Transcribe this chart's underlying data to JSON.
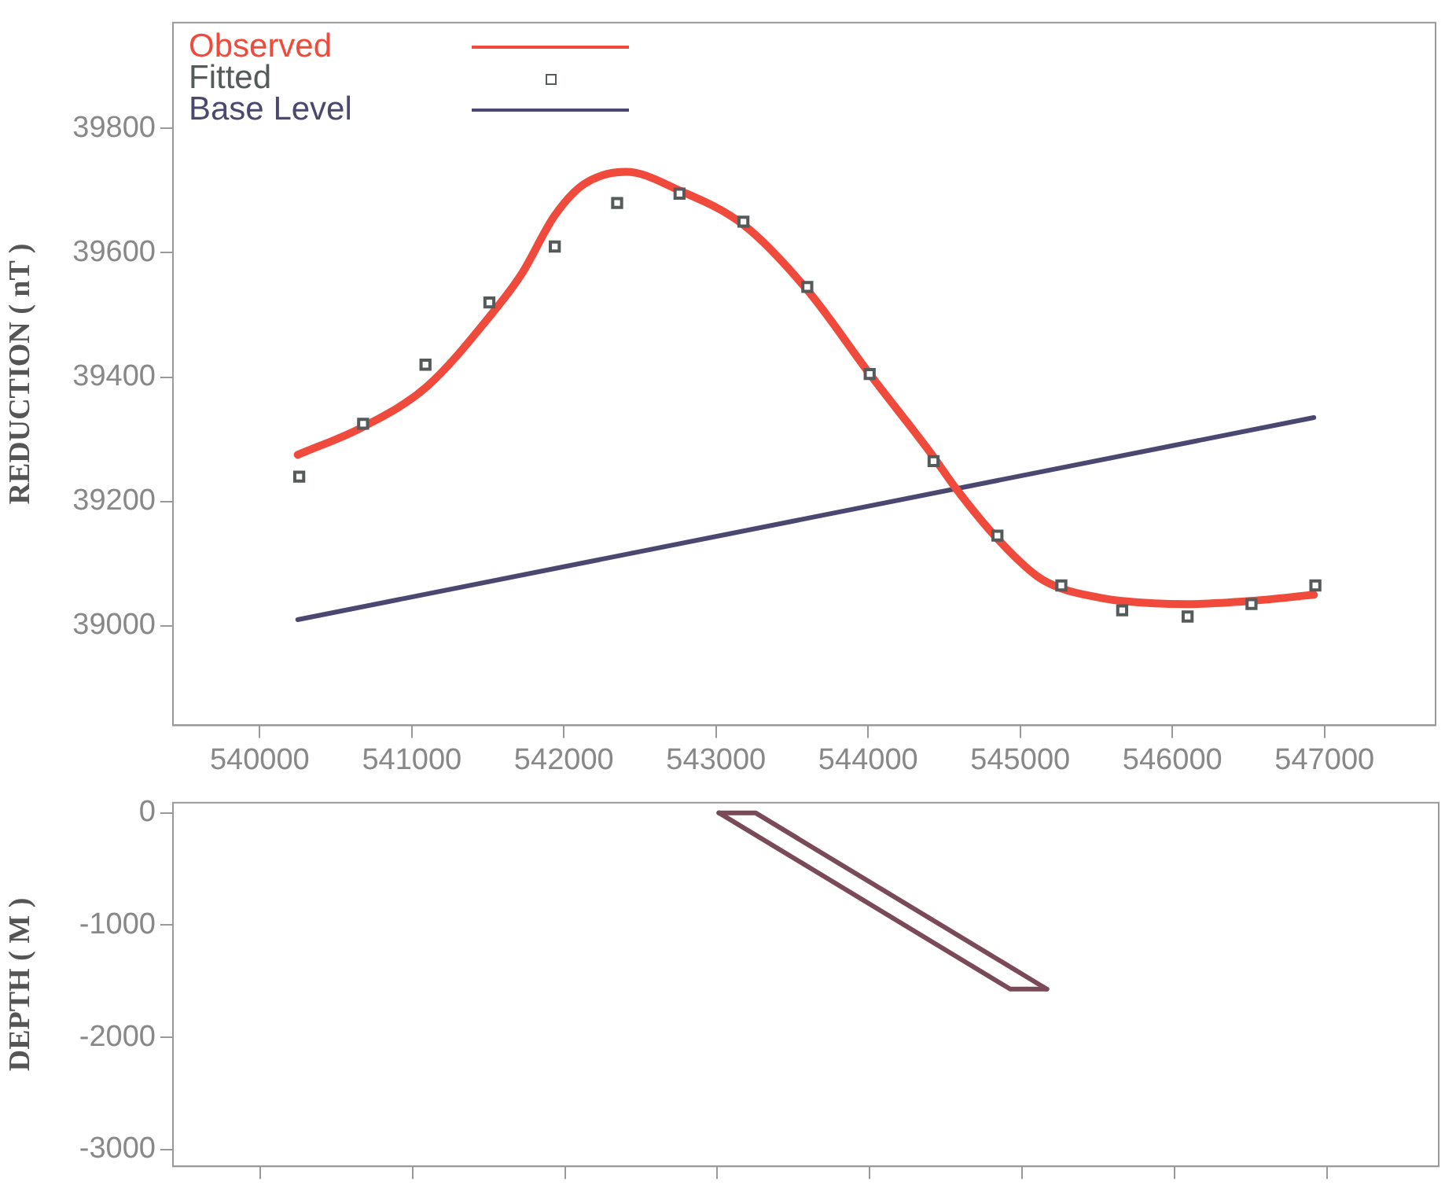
{
  "chart_data": [
    {
      "type": "line",
      "ylabel": "REDUCTION ( nT )",
      "xlim": [
        539430,
        547730
      ],
      "ylim": [
        38840,
        39970
      ],
      "xticks": [
        540000,
        541000,
        542000,
        543000,
        544000,
        545000,
        546000,
        547000
      ],
      "yticks": [
        39000,
        39200,
        39400,
        39600,
        39800
      ],
      "grid": false,
      "legend": "top left",
      "series": [
        {
          "name": "Observed",
          "type": "line",
          "color": "#f04a3c",
          "marker": "none",
          "line_style": "solid",
          "x": [
            540250,
            540680,
            541100,
            541520,
            541720,
            541940,
            542130,
            542410,
            542760,
            543180,
            543600,
            544010,
            544420,
            544580,
            544850,
            545110,
            545270,
            545530,
            545670,
            546090,
            546510,
            546930
          ],
          "values": [
            39275,
            39320,
            39385,
            39500,
            39565,
            39660,
            39710,
            39730,
            39700,
            39645,
            39540,
            39405,
            39275,
            39220,
            39140,
            39080,
            39060,
            39045,
            39040,
            39035,
            39040,
            39050
          ]
        },
        {
          "name": "Fitted",
          "type": "scatter",
          "color": "#555a5a",
          "marker": "square",
          "x": [
            540260,
            540680,
            541090,
            541510,
            541940,
            542350,
            542760,
            543180,
            543600,
            544010,
            544430,
            544850,
            545270,
            545670,
            546100,
            546520,
            546940
          ],
          "values": [
            39240,
            39325,
            39420,
            39520,
            39610,
            39680,
            39695,
            39650,
            39545,
            39405,
            39265,
            39145,
            39065,
            39025,
            39015,
            39035,
            39065
          ]
        },
        {
          "name": "Base Level",
          "type": "line",
          "color": "#4a4870",
          "marker": "none",
          "line_style": "solid",
          "x": [
            540250,
            546930
          ],
          "values": [
            39010,
            39335
          ]
        }
      ]
    },
    {
      "type": "line",
      "ylabel": "DEPTH ( M )",
      "xlim": [
        539430,
        547730
      ],
      "ylim": [
        -3150,
        90
      ],
      "xticks": [
        540000,
        541000,
        542000,
        543000,
        544000,
        545000,
        546000,
        547000
      ],
      "yticks": [
        -3000,
        -2000,
        -1000,
        0
      ],
      "grid": false,
      "legend": false,
      "tick_labels": "y",
      "series": [
        {
          "type": "line",
          "color": "#7a4a58",
          "marker": "none",
          "line_style": "solid",
          "x": [
            543010,
            543250,
            545160
          ],
          "values": [
            0,
            0,
            -1570
          ]
        },
        {
          "type": "line",
          "color": "#7a4a58",
          "marker": "none",
          "line_style": "solid",
          "x": [
            543010,
            544920,
            545160
          ],
          "values": [
            0,
            -1570,
            -1570
          ]
        }
      ]
    }
  ]
}
